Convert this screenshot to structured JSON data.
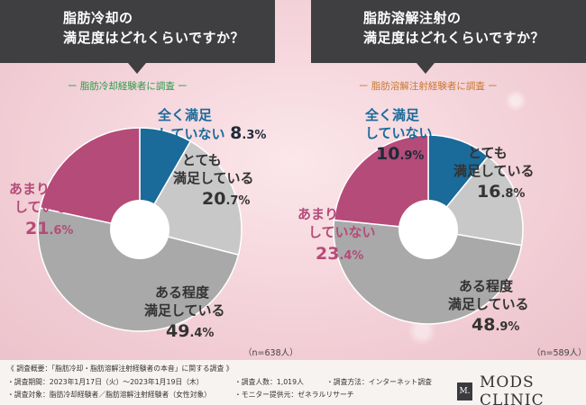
{
  "colors": {
    "not_at_all": "#1a6a9a",
    "not_very": "#b54b79",
    "somewhat": "#a9a9a9",
    "very": "#c8c8c8",
    "center": "#ffffff"
  },
  "left": {
    "title_line1": "脂肪冷却の",
    "title_line2": "満足度はどれくらいですか？",
    "subtitle": "ー 脂肪冷却経験者に調査 ー",
    "n_note": "（n=638人）"
  },
  "right": {
    "title_line1": "脂肪溶解注射の",
    "title_line2": "満足度はどれくらいですか？",
    "subtitle": "ー 脂肪溶解注射経験者に調査 ー",
    "n_note": "（n=589人）"
  },
  "chart_data": [
    {
      "type": "pie",
      "title": "脂肪冷却の満足度はどれくらいですか？",
      "categories": [
        "全く満足していない",
        "とても満足している",
        "ある程度満足している",
        "あまり満足していない"
      ],
      "values": [
        8.3,
        20.7,
        49.4,
        21.6
      ],
      "unit": "%",
      "labels": {
        "not_at_all": {
          "l1": "全く満足",
          "l2": "していない",
          "int": "8",
          "dec": ".3%"
        },
        "very": {
          "l1": "とても",
          "l2": "満足している",
          "int": "20",
          "dec": ".7%"
        },
        "somewhat": {
          "l1": "ある程度",
          "l2": "満足している",
          "int": "49",
          "dec": ".4%"
        },
        "not_very": {
          "l1": "あまり満足",
          "l2": "していない",
          "int": "21",
          "dec": ".6%"
        }
      }
    },
    {
      "type": "pie",
      "title": "脂肪溶解注射の満足度はどれくらいですか？",
      "categories": [
        "全く満足していない",
        "とても満足している",
        "ある程度満足している",
        "あまり満足していない"
      ],
      "values": [
        10.9,
        16.8,
        48.9,
        23.4
      ],
      "unit": "%",
      "labels": {
        "not_at_all": {
          "l1": "全く満足",
          "l2": "していない",
          "int": "10",
          "dec": ".9%"
        },
        "very": {
          "l1": "とても",
          "l2": "満足している",
          "int": "16",
          "dec": ".8%"
        },
        "somewhat": {
          "l1": "ある程度",
          "l2": "満足している",
          "int": "48",
          "dec": ".9%"
        },
        "not_very": {
          "l1": "あまり満足",
          "l2": "していない",
          "int": "23",
          "dec": ".4%"
        }
      }
    }
  ],
  "footer": {
    "heading": "《 調査概要：「脂肪冷却・脂肪溶解注射経験者の本音」に関する調査 》",
    "period": "・調査期間：2023年1月17日（火）～2023年1月19日（木）",
    "subjects": "・調査対象：脂肪冷却経験者／脂肪溶解注射経験者（女性対象）",
    "count": "・調査人数：1,019人",
    "provider": "・モニター提供元：ゼネラルリサーチ",
    "method": "・調査方法：インターネット調査",
    "logo_mark": "M.",
    "logo_text": "MODS CLINIC"
  }
}
